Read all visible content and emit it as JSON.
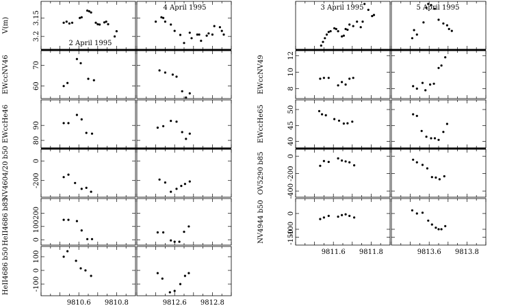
{
  "chart_data": {
    "type": "scatter",
    "x_tick_labels": {
      "d1": [
        "9810.6",
        "9810.8"
      ],
      "d2": [
        "9812.6",
        "9812.8"
      ],
      "d3": [
        "9811.6",
        "9811.8"
      ],
      "d4": [
        "9813.6",
        "9813.8"
      ]
    },
    "x_ticks": {
      "d1": [
        9810.6,
        9810.8
      ],
      "d2": [
        9812.6,
        9812.8
      ],
      "d3": [
        9811.6,
        9811.8
      ],
      "d4": [
        9813.6,
        9813.8
      ]
    },
    "x_ranges": {
      "d1": [
        9810.4,
        9810.9
      ],
      "d2": [
        9812.4,
        9812.9
      ],
      "d3": [
        9811.4,
        9811.9
      ],
      "d4": [
        9813.4,
        9813.9
      ]
    },
    "dates": [
      {
        "name": "2 April 1995",
        "x": [
          9810.52,
          9810.54,
          9810.56,
          9810.58,
          9810.61,
          9810.62,
          9810.64,
          9810.65,
          9810.66,
          9810.67,
          9810.68,
          9810.69,
          9810.7,
          9810.72,
          9810.73,
          9810.74,
          9810.75,
          9810.77,
          9810.78
        ]
      },
      {
        "name": "4 April 1995"
      },
      {
        "name": "3 April 1995"
      },
      {
        "name": "5 April 1995"
      }
    ],
    "panels": [
      {
        "group": "left",
        "row": 0,
        "ylabel": "V(m)",
        "yticks": [
          "3.15",
          "3.2"
        ],
        "ytick_values": [
          3.15,
          3.2
        ],
        "ylim": [
          3.235,
          3.105
        ],
        "inverted": true,
        "series": [
          {
            "date": "2 April 1995",
            "x": [
              9810.52,
              9810.535,
              9810.55,
              9810.565,
              9810.605,
              9810.615,
              9810.645,
              9810.655,
              9810.665,
              9810.69,
              9810.7,
              9810.71,
              9810.735,
              9810.745,
              9810.755,
              9810.79,
              9810.8
            ],
            "y": [
              3.163,
              3.16,
              3.165,
              3.163,
              3.15,
              3.148,
              3.13,
              3.132,
              3.135,
              3.163,
              3.167,
              3.168,
              3.162,
              3.16,
              3.167,
              3.2,
              3.186
            ]
          },
          {
            "date": "4 April 1995",
            "x": [
              9812.5,
              9812.53,
              9812.54,
              9812.55,
              9812.58,
              9812.6,
              9812.63,
              9812.65,
              9812.68,
              9812.69,
              9812.72,
              9812.73,
              9812.74,
              9812.77,
              9812.78,
              9812.8,
              9812.81,
              9812.84,
              9812.85,
              9812.86
            ],
            "y": [
              3.16,
              3.148,
              3.15,
              3.16,
              3.168,
              3.185,
              3.196,
              3.218,
              3.19,
              3.205,
              3.195,
              3.195,
              3.212,
              3.198,
              3.192,
              3.195,
              3.172,
              3.175,
              3.185,
              3.195
            ]
          }
        ]
      },
      {
        "group": "left",
        "row": 1,
        "ylabel": "EWccNV46",
        "yticks": [
          "60",
          "70"
        ],
        "ytick_values": [
          60,
          70
        ],
        "ylim": [
          54,
          77
        ],
        "series": [
          {
            "date": "2 April 1995",
            "x": [
              9810.52,
              9810.54,
              9810.59,
              9810.61,
              9810.65,
              9810.68
            ],
            "y": [
              60.0,
              61.5,
              73.0,
              71.0,
              63.5,
              62.8
            ]
          },
          {
            "date": "4 April 1995",
            "x": [
              9812.52,
              9812.55,
              9812.59,
              9812.61,
              9812.64,
              9812.66,
              9812.68
            ],
            "y": [
              67.5,
              66.5,
              65.5,
              64.5,
              57.5,
              54.5,
              56.5
            ]
          }
        ]
      },
      {
        "group": "left",
        "row": 2,
        "ylabel": "EWccHe46",
        "yticks": [
          "80",
          "90"
        ],
        "ytick_values": [
          80,
          90
        ],
        "ylim": [
          75,
          107
        ],
        "series": [
          {
            "date": "2 April 1995",
            "x": [
              9810.52,
              9810.545,
              9810.59,
              9810.615,
              9810.64,
              9810.67
            ],
            "y": [
              91.5,
              91.5,
              97.0,
              94.0,
              85.0,
              84.5
            ]
          },
          {
            "date": "4 April 1995",
            "x": [
              9812.51,
              9812.54,
              9812.58,
              9812.61,
              9812.64,
              9812.66,
              9812.68
            ],
            "y": [
              88.5,
              89.5,
              93.0,
              92.5,
              85.5,
              81.0,
              84.5
            ]
          }
        ]
      },
      {
        "group": "left",
        "row": 3,
        "ylabel": "NV4604/20 b50",
        "yticks": [
          "-200",
          "0"
        ],
        "ytick_values": [
          -200,
          0
        ],
        "ylim": [
          -370,
          120
        ],
        "series": [
          {
            "date": "2 April 1995",
            "x": [
              9810.52,
              9810.545,
              9810.58,
              9810.615,
              9810.64,
              9810.665
            ],
            "y": [
              -165,
              -140,
              -225,
              -285,
              -275,
              -315
            ]
          },
          {
            "date": "4 April 1995",
            "x": [
              9812.52,
              9812.55,
              9812.58,
              9812.61,
              9812.635,
              9812.655,
              9812.68
            ],
            "y": [
              -190,
              -220,
              -315,
              -285,
              -255,
              -235,
              -210
            ]
          }
        ]
      },
      {
        "group": "left",
        "row": 4,
        "ylabel": "HeII4686 b85",
        "yticks": [
          "0",
          "100",
          "200"
        ],
        "ytick_values": [
          0,
          100,
          200
        ],
        "ylim": [
          -40,
          310
        ],
        "series": [
          {
            "date": "2 April 1995",
            "x": [
              9810.52,
              9810.545,
              9810.59,
              9810.615,
              9810.645,
              9810.67
            ],
            "y": [
              150,
              150,
              140,
              70,
              5,
              5
            ]
          },
          {
            "date": "4 April 1995",
            "x": [
              9812.51,
              9812.54,
              9812.58,
              9812.6,
              9812.625,
              9812.65,
              9812.675
            ],
            "y": [
              55,
              55,
              -5,
              -15,
              -15,
              60,
              100
            ]
          }
        ]
      },
      {
        "group": "left",
        "row": 5,
        "ylabel": "HeII4686 b50",
        "yticks": [
          "-100",
          "0",
          "100"
        ],
        "ytick_values": [
          -100,
          0,
          100
        ],
        "ylim": [
          -185,
          175
        ],
        "series": [
          {
            "date": "2 April 1995",
            "x": [
              9810.52,
              9810.54,
              9810.585,
              9810.61,
              9810.635,
              9810.665
            ],
            "y": [
              100,
              140,
              70,
              15,
              0,
              -40
            ]
          },
          {
            "date": "4 April 1995",
            "x": [
              9812.51,
              9812.535,
              9812.575,
              9812.6,
              9812.63,
              9812.655,
              9812.675
            ],
            "y": [
              -20,
              -60,
              -160,
              -150,
              -100,
              -40,
              -20
            ]
          }
        ]
      },
      {
        "group": "right",
        "row": 0,
        "ylabel": "",
        "yticks": [],
        "ytick_values": [],
        "ylim": [
          3.235,
          3.105
        ],
        "inverted": true,
        "series": [
          {
            "date": "3 April 1995",
            "x": [
              9811.535,
              9811.545,
              9811.555,
              9811.565,
              9811.575,
              9811.585,
              9811.605,
              9811.615,
              9811.625,
              9811.645,
              9811.655,
              9811.665,
              9811.675,
              9811.685,
              9811.705,
              9811.725,
              9811.745,
              9811.755,
              9811.765,
              9811.785,
              9811.805,
              9811.815
            ],
            "y": [
              3.225,
              3.215,
              3.205,
              3.195,
              3.188,
              3.186,
              3.178,
              3.18,
              3.186,
              3.2,
              3.198,
              3.18,
              3.182,
              3.168,
              3.172,
              3.16,
              3.175,
              3.16,
              3.112,
              3.128,
              3.145,
              3.142
            ]
          },
          {
            "date": "5 April 1995",
            "x": [
              9813.51,
              9813.52,
              9813.535,
              9813.57,
              9813.585,
              9813.595,
              9813.61,
              9813.63,
              9813.65,
              9813.675,
              9813.695,
              9813.705,
              9813.72
            ],
            "y": [
              3.205,
              3.183,
              3.195,
              3.162,
              3.122,
              3.112,
              3.115,
              3.125,
              3.155,
              3.165,
              3.17,
              3.18,
              3.185
            ]
          }
        ]
      },
      {
        "group": "right",
        "row": 1,
        "ylabel": "EWccNV49",
        "yticks": [
          "8",
          "10",
          "12"
        ],
        "ytick_values": [
          8,
          10,
          12
        ],
        "ylim": [
          6.8,
          12.6
        ],
        "series": [
          {
            "date": "3 April 1995",
            "x": [
              9811.53,
              9811.55,
              9811.575,
              9811.625,
              9811.645,
              9811.665,
              9811.685,
              9811.705
            ],
            "y": [
              9.2,
              9.3,
              9.3,
              8.4,
              8.8,
              8.5,
              9.2,
              9.3
            ]
          },
          {
            "date": "5 April 1995",
            "x": [
              9813.515,
              9813.535,
              9813.565,
              9813.58,
              9813.605,
              9813.625,
              9813.65,
              9813.665,
              9813.685
            ],
            "y": [
              8.3,
              8.0,
              8.7,
              7.8,
              8.5,
              8.6,
              10.5,
              10.8,
              11.8
            ]
          }
        ]
      },
      {
        "group": "right",
        "row": 2,
        "ylabel": "EWccHe65",
        "yticks": [
          "40",
          "45",
          "50"
        ],
        "ytick_values": [
          40,
          45,
          50
        ],
        "ylim": [
          38,
          53
        ],
        "series": [
          {
            "date": "3 April 1995",
            "x": [
              9811.525,
              9811.54,
              9811.56,
              9811.605,
              9811.63,
              9811.655,
              9811.675,
              9811.7
            ],
            "y": [
              49.5,
              48.5,
              48.2,
              47.0,
              46.5,
              45.6,
              45.7,
              46.2
            ]
          },
          {
            "date": "5 April 1995",
            "x": [
              9813.515,
              9813.535,
              9813.56,
              9813.585,
              9813.61,
              9813.63,
              9813.65,
              9813.675,
              9813.695
            ],
            "y": [
              48.5,
              48.0,
              43.3,
              41.5,
              41.0,
              41.0,
              40.5,
              43.0,
              45.5
            ]
          }
        ]
      },
      {
        "group": "right",
        "row": 3,
        "ylabel": "OV5290 b85",
        "yticks": [
          "-400",
          "-200",
          "0"
        ],
        "ytick_values": [
          -400,
          -200,
          0
        ],
        "ylim": [
          -470,
          80
        ],
        "series": [
          {
            "date": "3 April 1995",
            "x": [
              9811.53,
              9811.55,
              9811.575,
              9811.625,
              9811.645,
              9811.665,
              9811.685,
              9811.71
            ],
            "y": [
              -110,
              -55,
              -65,
              -25,
              -50,
              -60,
              -70,
              -105
            ]
          },
          {
            "date": "5 April 1995",
            "x": [
              9813.515,
              9813.535,
              9813.565,
              9813.59,
              9813.615,
              9813.635,
              9813.655,
              9813.68
            ],
            "y": [
              -40,
              -70,
              -100,
              -140,
              -240,
              -245,
              -265,
              -230
            ]
          }
        ]
      },
      {
        "group": "right",
        "row": 4,
        "ylabel": "NV4944 b50",
        "yticks": [
          "-150",
          "-100",
          "0"
        ],
        "ytick_values": [
          -150,
          -100,
          0
        ],
        "ylim": [
          -200,
          95
        ],
        "series": [
          {
            "date": "3 April 1995",
            "x": [
              9811.53,
              9811.55,
              9811.575,
              9811.625,
              9811.645,
              9811.665,
              9811.685,
              9811.71
            ],
            "y": [
              -35,
              -25,
              -15,
              -20,
              -10,
              -5,
              -15,
              -25
            ]
          },
          {
            "date": "5 April 1995",
            "x": [
              9813.51,
              9813.535,
              9813.565,
              9813.595,
              9813.615,
              9813.635,
              9813.65,
              9813.665,
              9813.685
            ],
            "y": [
              20,
              0,
              5,
              -45,
              -70,
              -90,
              -100,
              -100,
              -80
            ]
          }
        ]
      }
    ]
  }
}
